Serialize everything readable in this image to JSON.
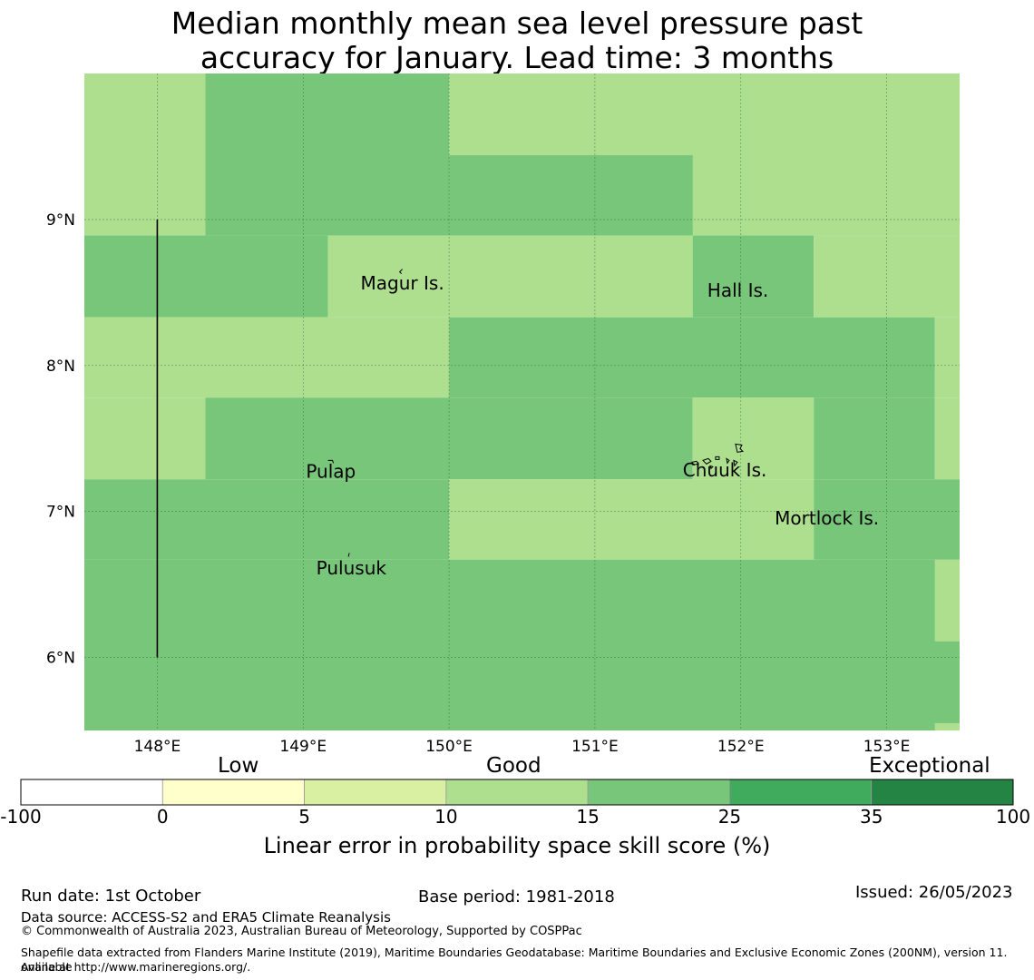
{
  "title": {
    "line1": "Median monthly mean sea level pressure past",
    "line2": "accuracy for January. Lead time: 3 months"
  },
  "map": {
    "lon_range": [
      147.5,
      153.5
    ],
    "lat_range": [
      5.5,
      10.0
    ],
    "lon_ticks": [
      {
        "value": 148,
        "label": "148°E"
      },
      {
        "value": 149,
        "label": "149°E"
      },
      {
        "value": 150,
        "label": "150°E"
      },
      {
        "value": 151,
        "label": "151°E"
      },
      {
        "value": 152,
        "label": "152°E"
      },
      {
        "value": 153,
        "label": "153°E"
      }
    ],
    "lat_ticks": [
      {
        "value": 9,
        "label": "9°N"
      },
      {
        "value": 8,
        "label": "8°N"
      },
      {
        "value": 7,
        "label": "7°N"
      },
      {
        "value": 6,
        "label": "6°N"
      }
    ],
    "colors": {
      "c10_15": "#addf8e",
      "c15_25": "#78c67a"
    },
    "cells": [
      {
        "lon": [
          147.5,
          148.33
        ],
        "lat": [
          8.89,
          10.0
        ],
        "cls": "c10_15"
      },
      {
        "lon": [
          148.33,
          150.0
        ],
        "lat": [
          8.89,
          10.0
        ],
        "cls": "c15_25"
      },
      {
        "lon": [
          150.0,
          153.5
        ],
        "lat": [
          8.89,
          10.0
        ],
        "cls": "c10_15"
      },
      {
        "lon": [
          150.0,
          151.67
        ],
        "lat": [
          8.89,
          9.44
        ],
        "cls": "c15_25"
      },
      {
        "lon": [
          147.5,
          149.17
        ],
        "lat": [
          8.33,
          8.89
        ],
        "cls": "c15_25"
      },
      {
        "lon": [
          149.17,
          151.67
        ],
        "lat": [
          8.33,
          8.89
        ],
        "cls": "c10_15"
      },
      {
        "lon": [
          151.67,
          152.5
        ],
        "lat": [
          8.33,
          8.89
        ],
        "cls": "c15_25"
      },
      {
        "lon": [
          152.5,
          153.5
        ],
        "lat": [
          8.33,
          8.89
        ],
        "cls": "c10_15"
      },
      {
        "lon": [
          147.5,
          150.0
        ],
        "lat": [
          7.78,
          8.33
        ],
        "cls": "c10_15"
      },
      {
        "lon": [
          150.0,
          153.33
        ],
        "lat": [
          7.78,
          8.33
        ],
        "cls": "c15_25"
      },
      {
        "lon": [
          153.33,
          153.5
        ],
        "lat": [
          7.78,
          8.33
        ],
        "cls": "c10_15"
      },
      {
        "lon": [
          147.5,
          148.33
        ],
        "lat": [
          7.22,
          7.78
        ],
        "cls": "c10_15"
      },
      {
        "lon": [
          148.33,
          151.67
        ],
        "lat": [
          7.22,
          7.78
        ],
        "cls": "c15_25"
      },
      {
        "lon": [
          151.67,
          152.5
        ],
        "lat": [
          7.22,
          7.78
        ],
        "cls": "c10_15"
      },
      {
        "lon": [
          152.5,
          153.33
        ],
        "lat": [
          7.22,
          7.78
        ],
        "cls": "c15_25"
      },
      {
        "lon": [
          153.33,
          153.5
        ],
        "lat": [
          7.22,
          7.78
        ],
        "cls": "c10_15"
      },
      {
        "lon": [
          147.5,
          150.0
        ],
        "lat": [
          6.67,
          7.22
        ],
        "cls": "c15_25"
      },
      {
        "lon": [
          150.0,
          152.5
        ],
        "lat": [
          6.67,
          7.22
        ],
        "cls": "c10_15"
      },
      {
        "lon": [
          152.5,
          153.5
        ],
        "lat": [
          6.67,
          7.22
        ],
        "cls": "c15_25"
      },
      {
        "lon": [
          147.5,
          153.5
        ],
        "lat": [
          5.5,
          6.67
        ],
        "cls": "c15_25"
      },
      {
        "lon": [
          153.33,
          153.5
        ],
        "lat": [
          6.11,
          6.67
        ],
        "cls": "c10_15"
      },
      {
        "lon": [
          153.33,
          153.5
        ],
        "lat": [
          5.5,
          5.55
        ],
        "cls": "c10_15"
      }
    ],
    "boundary_line": {
      "lon": 148.0,
      "lat": [
        6.0,
        9.0
      ]
    },
    "places": [
      {
        "name": "Magur Is.",
        "lon": 149.68,
        "lat": 8.57
      },
      {
        "name": "Hall Is.",
        "lon": 151.98,
        "lat": 8.52
      },
      {
        "name": "Pulap",
        "lon": 149.19,
        "lat": 7.28
      },
      {
        "name": "Chuuk Is.",
        "lon": 151.89,
        "lat": 7.29
      },
      {
        "name": "Mortlock Is.",
        "lon": 152.59,
        "lat": 6.96
      },
      {
        "name": "Pulusuk",
        "lon": 149.33,
        "lat": 6.62
      }
    ]
  },
  "colorbar": {
    "category_labels": {
      "low": "Low",
      "good": "Good",
      "exceptional": "Exceptional"
    },
    "bins": [
      {
        "from": "-100",
        "to": "0",
        "color": "#ffffff"
      },
      {
        "from": "0",
        "to": "5",
        "color": "#ffffcc"
      },
      {
        "from": "5",
        "to": "10",
        "color": "#d9f0a3"
      },
      {
        "from": "10",
        "to": "15",
        "color": "#addf8e"
      },
      {
        "from": "15",
        "to": "25",
        "color": "#78c67a"
      },
      {
        "from": "25",
        "to": "35",
        "color": "#41ab5d"
      },
      {
        "from": "35",
        "to": "100",
        "color": "#238443"
      }
    ],
    "ticks": [
      "-100",
      "0",
      "5",
      "10",
      "15",
      "25",
      "35",
      "100"
    ],
    "title": "Linear error in probability space skill score (%)"
  },
  "footer": {
    "run_date": "Run date: 1st October",
    "base_period": "Base period: 1981-2018",
    "issued": "Issued: 26/05/2023",
    "data_source": "Data source: ACCESS-S2 and ERA5 Climate Reanalysis",
    "copyright": "© Commonwealth of Australia 2023, Australian Bureau of Meteorology, Supported by COSPPac",
    "shapefile_line1": "Shapefile data extracted from Flanders Marine Institute (2019), Maritime Boundaries Geodatabase: Maritime Boundaries and Exclusive Economic Zones (200NM), version 11. Available",
    "shapefile_line2": "online at http://www.marineregions.org/."
  }
}
